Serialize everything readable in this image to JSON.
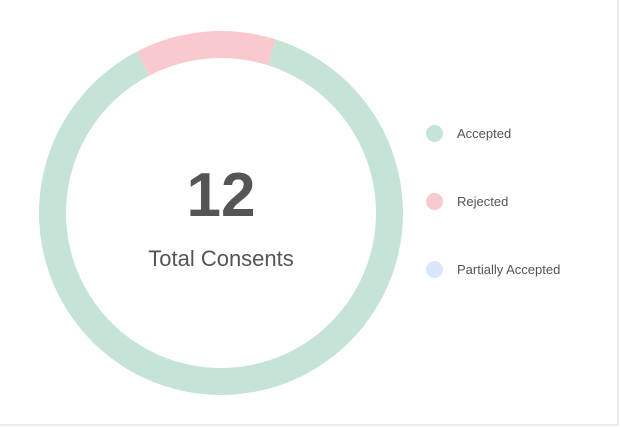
{
  "chart_data": {
    "type": "pie",
    "variant": "donut",
    "center_value": "12",
    "center_label": "Total Consents",
    "categories": [
      "Accepted",
      "Rejected",
      "Partially Accepted"
    ],
    "values": [
      10.5,
      1.5,
      0
    ],
    "colors": [
      "#c5e4d7",
      "#f9c9ce",
      "#d9e6fb"
    ],
    "legend": "right"
  }
}
